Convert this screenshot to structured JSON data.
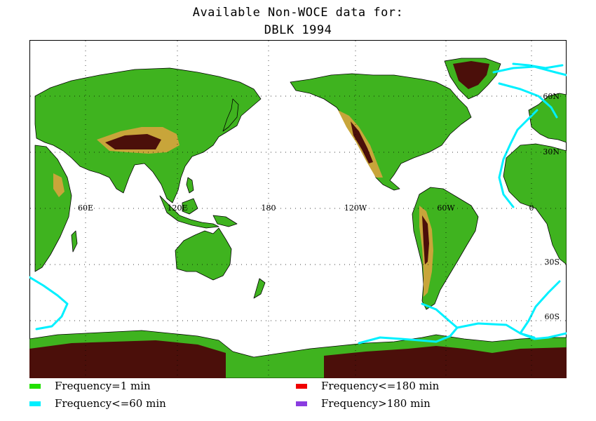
{
  "title": {
    "line1": "Available Non-WOCE data for:",
    "line2": "DBLK 1994"
  },
  "map": {
    "longitude_labels": [
      "60E",
      "120E",
      "180",
      "120W",
      "60W",
      "0"
    ],
    "latitude_labels": [
      "60N",
      "30N",
      "30S",
      "60S"
    ],
    "grid": true,
    "colors": {
      "ocean": "#ffffff",
      "lowland": "#3fb31f",
      "midland": "#6fbe2a",
      "highland": "#c8a53a",
      "mountain": "#8a4b12",
      "peak": "#4b0f0a",
      "track": "#00f0ff"
    }
  },
  "legend": {
    "items": [
      {
        "label": "Frequency=1 min",
        "color": "#22e000"
      },
      {
        "label": "Frequency<=60 min",
        "color": "#00f0ff"
      },
      {
        "label": "Frequency<=180 min",
        "color": "#f00000"
      },
      {
        "label": "Frequency>180 min",
        "color": "#8a3ce0"
      }
    ]
  }
}
